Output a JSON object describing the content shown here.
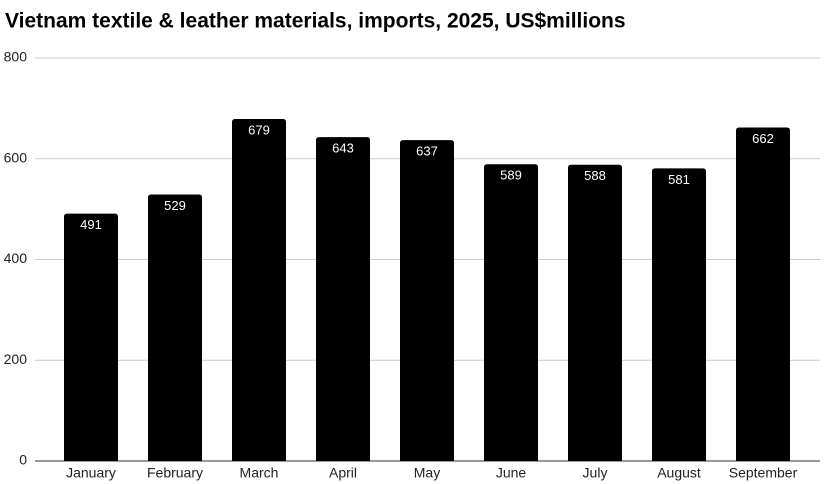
{
  "chart_data": {
    "type": "bar",
    "title": "Vietnam textile & leather materials, imports, 2025, US$millions",
    "categories": [
      "January",
      "February",
      "March",
      "April",
      "May",
      "June",
      "July",
      "August",
      "September"
    ],
    "values": [
      491,
      529,
      679,
      643,
      637,
      589,
      588,
      581,
      662
    ],
    "color": "#000000",
    "ylim": [
      0,
      800
    ],
    "yticks": [
      0,
      200,
      400,
      600,
      800
    ],
    "grid": true
  }
}
